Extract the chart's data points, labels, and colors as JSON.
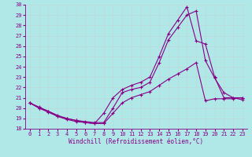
{
  "xlabel": "Windchill (Refroidissement éolien,°C)",
  "bg_color": "#b0e8e8",
  "grid_color": "#c0d8d8",
  "line_color": "#880088",
  "xlim": [
    -0.5,
    23.5
  ],
  "ylim": [
    18,
    30
  ],
  "xticks": [
    0,
    1,
    2,
    3,
    4,
    5,
    6,
    7,
    8,
    9,
    10,
    11,
    12,
    13,
    14,
    15,
    16,
    17,
    18,
    19,
    20,
    21,
    22,
    23
  ],
  "yticks": [
    18,
    19,
    20,
    21,
    22,
    23,
    24,
    25,
    26,
    27,
    28,
    29,
    30
  ],
  "hours": [
    0,
    1,
    2,
    3,
    4,
    5,
    6,
    7,
    8,
    9,
    10,
    11,
    12,
    13,
    14,
    15,
    16,
    17,
    18,
    19,
    20,
    21,
    22,
    23
  ],
  "line1": [
    20.5,
    20.0,
    19.7,
    19.3,
    19.0,
    18.8,
    18.7,
    18.6,
    18.6,
    20.0,
    21.5,
    21.8,
    22.0,
    22.5,
    24.4,
    26.6,
    27.8,
    29.0,
    29.4,
    24.6,
    22.9,
    21.5,
    21.0,
    20.8
  ],
  "line2": [
    20.5,
    20.1,
    19.7,
    19.2,
    18.9,
    18.7,
    18.6,
    18.5,
    18.5,
    19.5,
    20.5,
    21.0,
    21.3,
    21.6,
    22.2,
    22.8,
    23.3,
    23.8,
    24.4,
    20.7,
    20.9,
    20.9,
    20.9,
    21.0
  ],
  "line3": [
    20.5,
    20.0,
    19.6,
    19.2,
    19.0,
    18.8,
    18.6,
    18.5,
    19.5,
    21.0,
    21.8,
    22.2,
    22.5,
    23.0,
    25.0,
    27.2,
    28.5,
    29.8,
    26.5,
    26.2,
    23.0,
    21.0,
    21.0,
    21.0
  ]
}
